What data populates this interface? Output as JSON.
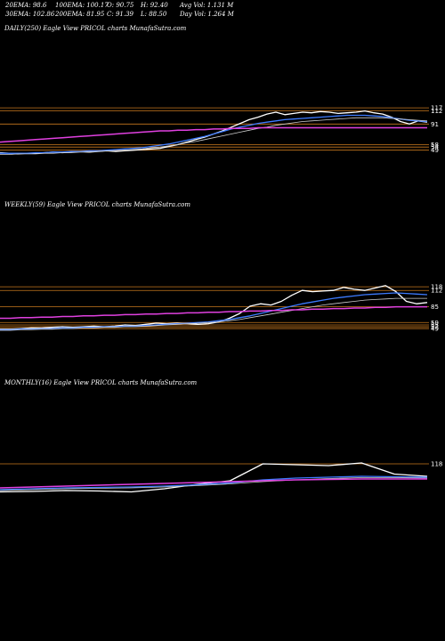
{
  "header": {
    "row1": [
      "20EMA: 98.6",
      "100EMA: 100.17",
      "O: 90.75",
      "H: 92.40",
      "Avg Vol: 1.131  M"
    ],
    "row2": [
      "30EMA: 102.86",
      "200EMA: 81.95",
      "C: 91.39",
      "L: 88.50",
      "Day Vol: 1.264  M"
    ]
  },
  "panels": {
    "daily": "DAILY(250) Eagle  View  PRICOL  charts MunafaSutra.com",
    "weekly": "WEEKLY(59) Eagle  View  PRICOL  charts MunafaSutra.com",
    "monthly": "MONTHLY(16) Eagle  View  PRICOL  charts MunafaSutra.com"
  },
  "colors": {
    "background": "#000000",
    "price": "#ffffff",
    "ema_fast": "#3d7bff",
    "ema_slow": "#e040e0",
    "levels": "#c8781e"
  },
  "chart_data": [
    {
      "type": "line",
      "name": "daily",
      "ylim": [
        30,
        130
      ],
      "price_levels": [
        117,
        112,
        91,
        58,
        54,
        49
      ],
      "tick_labels": [
        "117",
        "112",
        "91",
        "58",
        "54",
        "49"
      ],
      "series": [
        {
          "values": [
            45,
            44,
            43,
            44,
            44,
            45,
            46,
            45,
            46,
            47,
            46,
            47,
            48,
            47,
            48,
            49,
            50,
            51,
            52,
            55,
            58,
            62,
            66,
            70,
            75,
            80,
            86,
            92,
            98,
            102,
            107,
            110,
            106,
            108,
            110,
            109,
            111,
            110,
            108,
            109,
            110,
            112,
            109,
            107,
            102,
            95,
            91,
            96,
            94
          ]
        },
        {
          "values": [
            44,
            44,
            44,
            44,
            45,
            45,
            46,
            46,
            47,
            47,
            48,
            48,
            49,
            50,
            51,
            52,
            53,
            55,
            57,
            59,
            62,
            65,
            68,
            71,
            75,
            79,
            83,
            86,
            89,
            92,
            94,
            96,
            98,
            99,
            100,
            101,
            102,
            103,
            104,
            105,
            105,
            105,
            104,
            103,
            101,
            99,
            97,
            96,
            95
          ]
        },
        {
          "values": [
            42,
            42,
            43,
            43,
            43,
            44,
            44,
            45,
            45,
            46,
            46,
            47,
            48,
            48,
            49,
            50,
            51,
            53,
            54,
            56,
            58,
            61,
            63,
            66,
            69,
            72,
            75,
            78,
            81,
            84,
            86,
            89,
            91,
            93,
            95,
            96,
            97,
            98,
            99,
            100,
            101,
            101,
            101,
            101,
            100,
            99,
            98,
            97,
            96
          ]
        },
        {
          "values": [
            62,
            63,
            64,
            65,
            66,
            67,
            68,
            69,
            70,
            71,
            72,
            73,
            74,
            75,
            76,
            77,
            78,
            79,
            80,
            80,
            81,
            81,
            82,
            82,
            83,
            83,
            84,
            84,
            84,
            85,
            85,
            85,
            85,
            85,
            85,
            85,
            85,
            85,
            85,
            85,
            85,
            85,
            85,
            85,
            85,
            85,
            85,
            85,
            85
          ]
        }
      ]
    },
    {
      "type": "line",
      "name": "weekly",
      "ylim": [
        30,
        130
      ],
      "price_levels": [
        118,
        112,
        85,
        59,
        55,
        52,
        49
      ],
      "tick_labels": [
        "118",
        "112",
        "85",
        "59",
        "55",
        "52",
        "49"
      ],
      "series": [
        {
          "values": [
            48,
            48,
            49,
            50,
            50,
            51,
            52,
            51,
            52,
            53,
            52,
            53,
            55,
            54,
            56,
            58,
            57,
            58,
            57,
            56,
            57,
            60,
            66,
            74,
            86,
            90,
            88,
            94,
            104,
            112,
            110,
            111,
            112,
            117,
            114,
            112,
            116,
            120,
            110,
            94,
            90,
            92
          ]
        },
        {
          "values": [
            47,
            47,
            48,
            48,
            49,
            49,
            50,
            50,
            51,
            51,
            52,
            52,
            53,
            53,
            54,
            55,
            56,
            57,
            58,
            59,
            60,
            62,
            64,
            67,
            70,
            74,
            78,
            82,
            86,
            90,
            93,
            96,
            99,
            101,
            103,
            105,
            106,
            107,
            108,
            107,
            106,
            105
          ]
        },
        {
          "values": [
            46,
            46,
            47,
            47,
            48,
            48,
            49,
            49,
            50,
            50,
            51,
            51,
            52,
            52,
            53,
            54,
            55,
            56,
            57,
            58,
            59,
            60,
            62,
            64,
            67,
            70,
            73,
            76,
            79,
            82,
            85,
            88,
            90,
            92,
            94,
            96,
            97,
            98,
            99,
            99,
            99,
            99
          ]
        },
        {
          "values": [
            66,
            66,
            67,
            67,
            68,
            68,
            69,
            69,
            70,
            70,
            71,
            71,
            72,
            72,
            73,
            73,
            74,
            74,
            75,
            75,
            76,
            76,
            77,
            77,
            78,
            78,
            79,
            79,
            80,
            80,
            81,
            81,
            82,
            82,
            83,
            83,
            84,
            84,
            85,
            85,
            85,
            85
          ]
        }
      ]
    },
    {
      "type": "line",
      "name": "monthly",
      "ylim": [
        0,
        140
      ],
      "price_levels": [
        118
      ],
      "tick_labels": [
        "118"
      ],
      "series": [
        {
          "values": [
            55,
            56,
            58,
            57,
            55,
            62,
            72,
            80,
            118,
            116,
            114,
            120,
            95,
            90
          ]
        },
        {
          "values": [
            60,
            62,
            64,
            65,
            66,
            68,
            71,
            75,
            82,
            86,
            88,
            90,
            89,
            88
          ]
        },
        {
          "values": [
            58,
            60,
            62,
            63,
            64,
            66,
            69,
            73,
            78,
            82,
            85,
            87,
            87,
            86
          ]
        },
        {
          "values": [
            64,
            66,
            68,
            70,
            72,
            74,
            76,
            78,
            80,
            82,
            83,
            84,
            84,
            84
          ]
        }
      ]
    }
  ]
}
